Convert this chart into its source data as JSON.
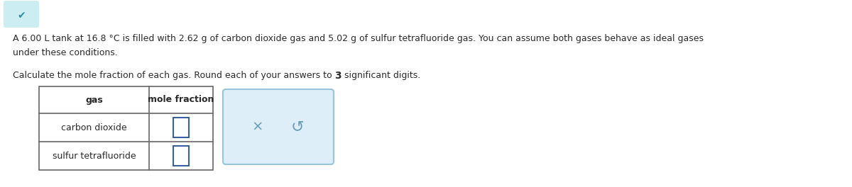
{
  "line1": "A 6.00 L tank at 16.8 °C is filled with 2.62 g of carbon dioxide gas and 5.02 g of sulfur tetrafluoride gas. You can assume both gases behave as ideal gases",
  "line2": "under these conditions.",
  "sub_part1": "Calculate the mole fraction of each gas. Round each of your answers to ",
  "sub_bold": "3",
  "sub_part2": " significant digits.",
  "table_headers": [
    "gas",
    "mole fraction"
  ],
  "table_rows": [
    "carbon dioxide",
    "sulfur tetrafluoride"
  ],
  "bg_color": "#ffffff",
  "text_color": "#2b2b2b",
  "chevron_bg": "#cceef2",
  "chevron_fg": "#2b8fa0",
  "input_box_color": "#3a5fa0",
  "button_bg": "#ddeef8",
  "button_border": "#99c4dc",
  "button_icon_color": "#6a9cba"
}
